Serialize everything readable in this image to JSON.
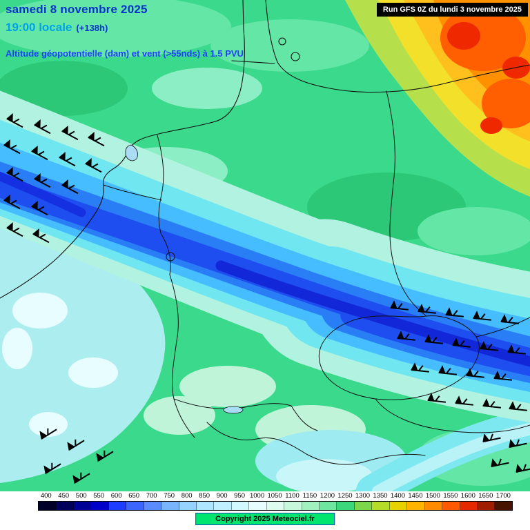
{
  "header": {
    "date": "samedi 8 novembre 2025",
    "time": "19:00 locale",
    "offset": "(+138h)",
    "map_title": "Altitude géopotentielle (dam) et vent (>55nds) à 1.5 PVU",
    "run": "Run GFS 0Z du lundi 3 novembre 2025"
  },
  "footer": {
    "copyright": "Copyright 2025 Meteociel.fr"
  },
  "colors": {
    "date_text": "#0433cc",
    "time_text": "#00a3e8",
    "title_text": "#1f3fff",
    "run_box_bg": "#000000",
    "run_box_text": "#ffffff",
    "copyright_bg": "#00e56e",
    "copyright_border": "#0d47c4",
    "map_background_green": "#3bd98b",
    "jet_core_blue": "#1228d8",
    "ridge_orange": "#ff9100"
  },
  "chart_data": {
    "type": "heatmap",
    "title": "Altitude géopotentielle (dam) et vent (>55nds) à 1.5 PVU",
    "unit": "dam",
    "model": "GFS",
    "run": "Run GFS 0Z du lundi 3 novembre 2025",
    "valid_local": "samedi 8 novembre 2025 19:00 locale",
    "forecast_hour": 138,
    "scale": {
      "min": 400,
      "max": 1700,
      "step": 50
    },
    "legend_values": [
      400,
      450,
      500,
      550,
      600,
      650,
      700,
      750,
      800,
      850,
      900,
      950,
      1000,
      1050,
      1100,
      1150,
      1200,
      1250,
      1300,
      1350,
      1400,
      1450,
      1500,
      1550,
      1600,
      1650,
      1700
    ],
    "legend_colors": [
      "#000028",
      "#00005a",
      "#000096",
      "#0000c8",
      "#1e3cff",
      "#3c64ff",
      "#5a8cff",
      "#78b4ff",
      "#96d2ff",
      "#aee6ff",
      "#c0f0ff",
      "#d2f8ff",
      "#e6fcff",
      "#defcf0",
      "#c8f8dc",
      "#a0f0c0",
      "#6ee6a0",
      "#3cd67d",
      "#7dd74b",
      "#b4dc28",
      "#e6d200",
      "#ffb400",
      "#ff8c00",
      "#ff5a00",
      "#e62800",
      "#a01e00",
      "#461400"
    ],
    "features": [
      "Low tropopause jet band (cyan/blue, ~550-800 dam) stretching NW-SE from the North Sea across central Germany towards Czech Republic / Austria",
      "High tropopause ridge (yellow/orange/red, ~1400-1600 dam) in the north-east (Baltic) corner",
      "Background field around 1100-1250 dam (greens and pale cyans) elsewhere",
      "Wind barbs plotted for winds > 55 kt along the jet axis"
    ]
  }
}
